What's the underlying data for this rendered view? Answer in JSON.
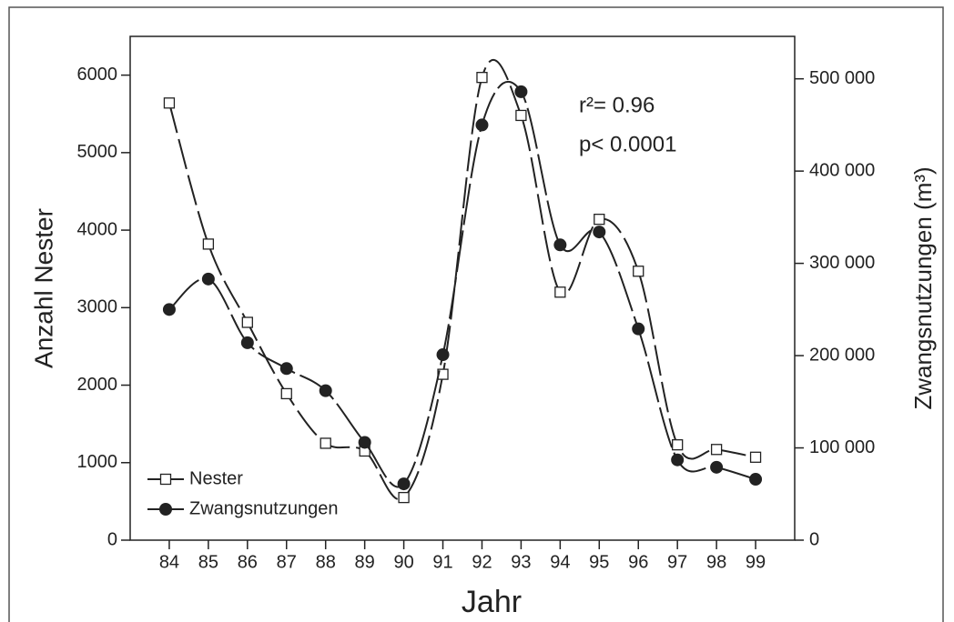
{
  "chart_data": {
    "type": "line",
    "xlabel": "Jahr",
    "ylabel": "Anzahl Nester",
    "y2label": "Zwangsnutzungen (m³)",
    "annotations": [
      "r²= 0.96",
      "p< 0.0001"
    ],
    "x": [
      84,
      85,
      86,
      87,
      88,
      89,
      90,
      91,
      92,
      93,
      94,
      95,
      96,
      97,
      98,
      99
    ],
    "xlim": [
      83,
      100
    ],
    "xticks": [
      84,
      85,
      86,
      87,
      88,
      89,
      90,
      91,
      92,
      93,
      94,
      95,
      96,
      97,
      98,
      99
    ],
    "ylim": [
      0,
      6500
    ],
    "yticks": [
      0,
      1000,
      2000,
      3000,
      4000,
      5000,
      6000
    ],
    "y2lim": [
      0,
      546000
    ],
    "y2ticks": [
      {
        "value": 0,
        "label": "0"
      },
      {
        "value": 100000,
        "label": "100 000"
      },
      {
        "value": 200000,
        "label": "200 000"
      },
      {
        "value": 300000,
        "label": "300 000"
      },
      {
        "value": 400000,
        "label": "400 000"
      },
      {
        "value": 500000,
        "label": "500 000"
      }
    ],
    "legend": "lower left",
    "series": [
      {
        "name": "Nester",
        "color": "#222222",
        "marker": "square",
        "values": [
          5640,
          3820,
          2810,
          1890,
          1250,
          1150,
          550,
          2140,
          5970,
          5480,
          3200,
          4140,
          3470,
          1230,
          1170,
          1070
        ]
      },
      {
        "name": "Zwangsnutzungen",
        "color": "#222222",
        "marker": "circle",
        "axis": "y2",
        "values": [
          250000,
          283000,
          214000,
          186000,
          162000,
          106000,
          61000,
          201000,
          450000,
          486000,
          320000,
          334000,
          229000,
          87000,
          79000,
          66000
        ]
      }
    ]
  }
}
